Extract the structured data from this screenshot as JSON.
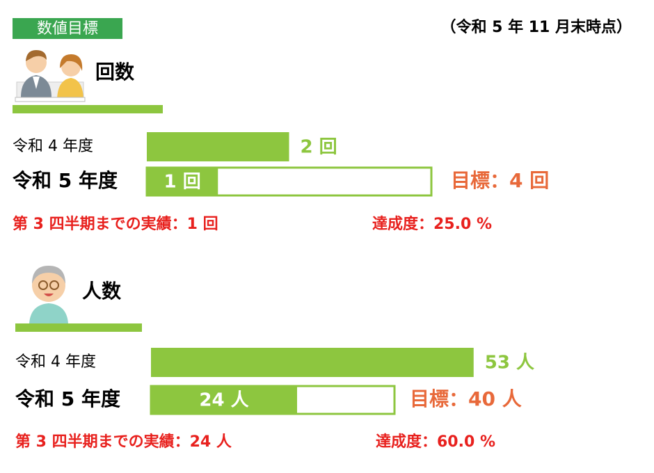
{
  "header": {
    "badge": "数値目標",
    "as_of": "（令和 5 年 11 月末時点）"
  },
  "sections": [
    {
      "title": "回数",
      "rows": [
        {
          "label": "令和 4 年度",
          "value": 2,
          "value_label": "2 回"
        },
        {
          "label": "令和 5 年度",
          "value": 1,
          "value_label": "1 回"
        }
      ],
      "target": 4,
      "target_label": "目標：4 回",
      "progress_label": "第 3 四半期までの実績：1 回",
      "rate": 25.0,
      "rate_label": "達成度：25.0 %"
    },
    {
      "title": "人数",
      "rows": [
        {
          "label": "令和 4 年度",
          "value": 53,
          "value_label": "53 人"
        },
        {
          "label": "令和 5 年度",
          "value": 24,
          "value_label": "24 人"
        }
      ],
      "target": 40,
      "target_label": "目標：40 人",
      "progress_label": "第 3 四半期までの実績：24 人",
      "rate": 60.0,
      "rate_label": "達成度：60.0 %"
    }
  ]
}
